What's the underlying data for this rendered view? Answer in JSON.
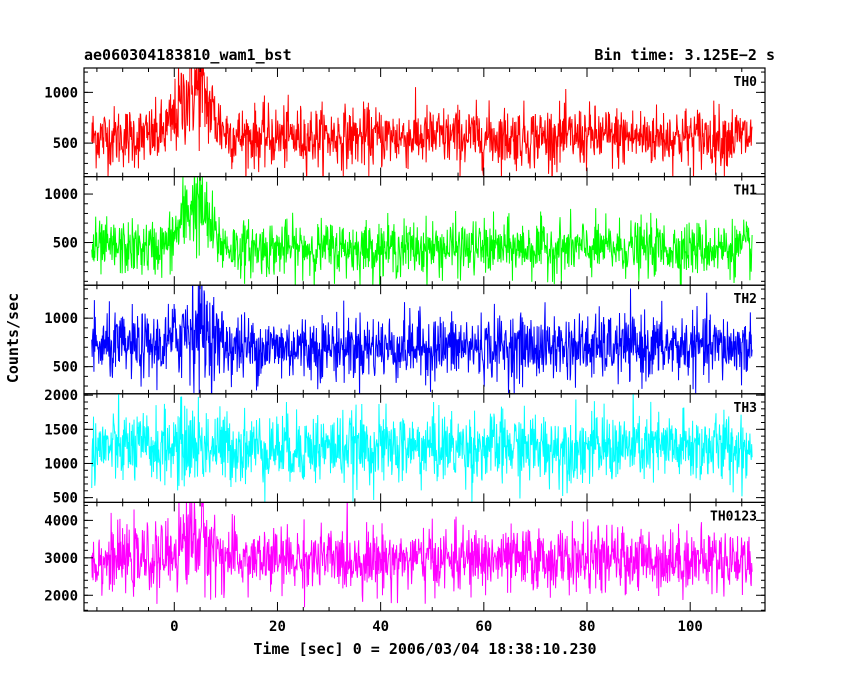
{
  "title_left": "ae060304183810_wam1_bst",
  "title_right": "Bin time: 3.125E−2 s",
  "ylabel": "Counts/sec",
  "xlabel": "Time [sec] 0 = 2006/03/04 18:38:10.230",
  "chart_data": {
    "type": "line",
    "x_range": [
      -16,
      112
    ],
    "xlim": [
      -17.5,
      114.5
    ],
    "xticks": [
      0,
      20,
      40,
      60,
      80,
      100
    ],
    "x_minor_step": 5,
    "grid": false,
    "panels": [
      {
        "label": "TH0",
        "color": "#ff0000",
        "ylim": [
          170,
          1240
        ],
        "yticks": [
          500,
          1000
        ],
        "y_minor_step": 100,
        "baseline": 560,
        "spread": 150,
        "burst_peak": 1050,
        "burst_center": 4,
        "burst_width": 4,
        "burst_extra_spread": 120
      },
      {
        "label": "TH1",
        "color": "#00ff00",
        "ylim": [
          60,
          1180
        ],
        "yticks": [
          500,
          1000
        ],
        "y_minor_step": 100,
        "baseline": 440,
        "spread": 140,
        "burst_peak": 900,
        "burst_center": 4,
        "burst_width": 3.5,
        "burst_extra_spread": 110
      },
      {
        "label": "TH2",
        "color": "#0000ff",
        "ylim": [
          220,
          1340
        ],
        "yticks": [
          500,
          1000
        ],
        "y_minor_step": 100,
        "baseline": 700,
        "spread": 170,
        "burst_peak": 930,
        "burst_center": 4,
        "burst_width": 4,
        "burst_extra_spread": 120
      },
      {
        "label": "TH3",
        "color": "#00ffff",
        "ylim": [
          430,
          2020
        ],
        "yticks": [
          500,
          1000,
          1500,
          2000
        ],
        "y_minor_step": 100,
        "baseline": 1230,
        "spread": 260,
        "burst_peak": 1280,
        "burst_center": 4,
        "burst_width": 4,
        "burst_extra_spread": 60
      },
      {
        "label": "TH0123",
        "color": "#ff00ff",
        "ylim": [
          1580,
          4480
        ],
        "yticks": [
          2000,
          3000,
          4000
        ],
        "y_minor_step": 200,
        "baseline": 2950,
        "spread": 420,
        "burst_peak": 3600,
        "burst_center": 4,
        "burst_width": 4,
        "burst_extra_spread": 300
      }
    ]
  }
}
